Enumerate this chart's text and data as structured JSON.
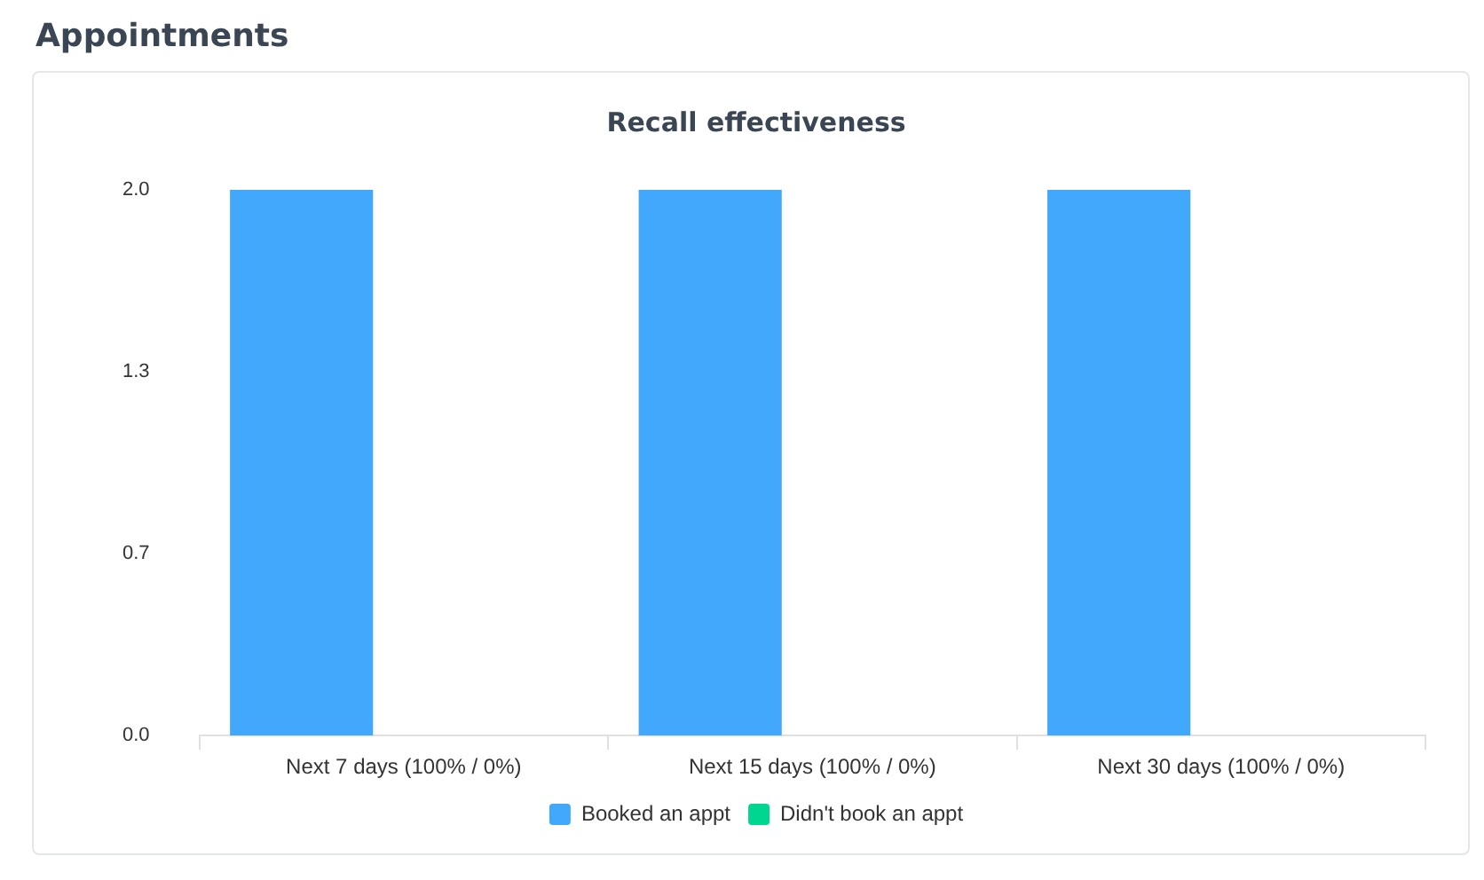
{
  "chart_data": {
    "type": "bar",
    "title": "Recall effectiveness",
    "annotations": [
      "Appointments"
    ],
    "categories": [
      "Next 7 days (100% / 0%)",
      "Next 15 days (100% / 0%)",
      "Next 30 days (100% / 0%)"
    ],
    "series": [
      {
        "name": "Booked an appt",
        "color": "#42a8fc",
        "values": [
          2,
          2,
          2
        ]
      },
      {
        "name": "Didn't book an appt",
        "color": "#00d68f",
        "values": [
          0,
          0,
          0
        ]
      }
    ],
    "ylim": [
      0,
      2
    ],
    "yticks": [
      {
        "value": 0,
        "label": "0.0"
      },
      {
        "value": 0.667,
        "label": "0.7"
      },
      {
        "value": 1.333,
        "label": "1.3"
      },
      {
        "value": 2,
        "label": "2.0"
      }
    ],
    "grid": false,
    "legend": "bottom"
  }
}
